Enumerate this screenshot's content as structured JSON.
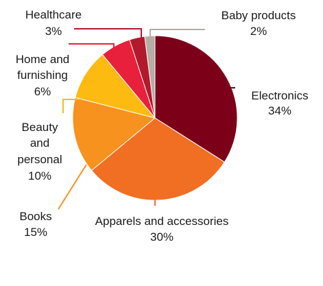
{
  "chart_data": {
    "type": "pie",
    "title": "",
    "slices": [
      {
        "name": "Electronics",
        "value": 34,
        "pct_text": "34%",
        "color": "#7d0019"
      },
      {
        "name": "Apparels and accessories",
        "value": 30,
        "pct_text": "30%",
        "color": "#f06f23"
      },
      {
        "name": "Books",
        "value": 15,
        "pct_text": "15%",
        "color": "#f7921e"
      },
      {
        "name": "Beauty and personal",
        "value": 10,
        "pct_text": "10%",
        "color": "#fdbb11"
      },
      {
        "name": "Home and furnishing",
        "value": 6,
        "pct_text": "6%",
        "color": "#e9203b"
      },
      {
        "name": "Healthcare",
        "value": 3,
        "pct_text": "3%",
        "color": "#b3192c"
      },
      {
        "name": "Baby products",
        "value": 2,
        "pct_text": "2%",
        "color": "#b6ada5"
      }
    ],
    "start_angle": "12 o'clock",
    "direction": "clockwise",
    "legend": "none"
  }
}
